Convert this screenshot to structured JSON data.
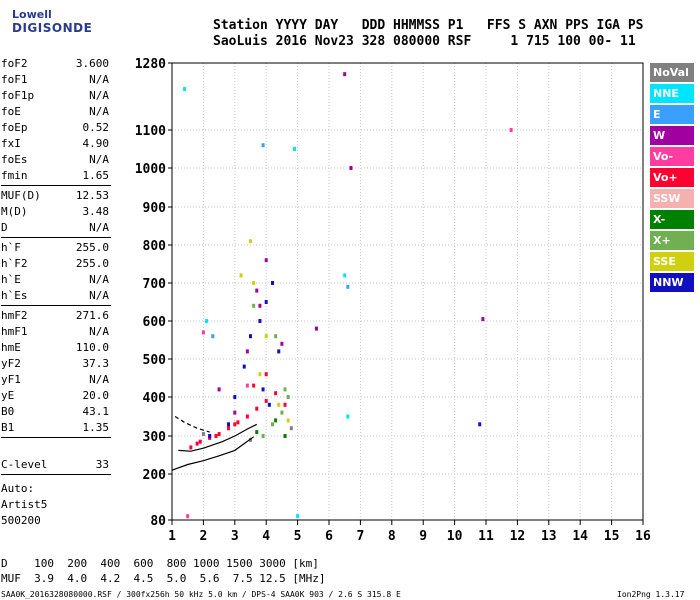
{
  "logo": {
    "top": "Lowell",
    "bottom": "DIGISONDE"
  },
  "header": {
    "line1": "Station YYYY DAY   DDD HHMMSS P1   FFS S AXN PPS IGA PS",
    "line2": "SaoLuis 2016 Nov23 328 080000 RSF     1 715 100 00- 11"
  },
  "parameters": [
    {
      "name": "foF2",
      "value": "3.600"
    },
    {
      "name": "foF1",
      "value": "N/A"
    },
    {
      "name": "foF1p",
      "value": "N/A"
    },
    {
      "name": "foE",
      "value": "N/A"
    },
    {
      "name": "foEp",
      "value": "0.52"
    },
    {
      "name": "fxI",
      "value": "4.90"
    },
    {
      "name": "foEs",
      "value": "N/A"
    },
    {
      "name": "fmin",
      "value": "1.65"
    },
    {
      "name": "MUF(D)",
      "value": "12.53"
    },
    {
      "name": "M(D)",
      "value": "3.48"
    },
    {
      "name": "D",
      "value": "N/A"
    },
    {
      "name": "h`F",
      "value": "255.0"
    },
    {
      "name": "h`F2",
      "value": "255.0"
    },
    {
      "name": "h`E",
      "value": "N/A"
    },
    {
      "name": "h`Es",
      "value": "N/A"
    },
    {
      "name": "hmF2",
      "value": "271.6"
    },
    {
      "name": "hmF1",
      "value": "N/A"
    },
    {
      "name": "hmE",
      "value": "110.0"
    },
    {
      "name": "yF2",
      "value": "37.3"
    },
    {
      "name": "yF1",
      "value": "N/A"
    },
    {
      "name": "yE",
      "value": "20.0"
    },
    {
      "name": "B0",
      "value": "43.1"
    },
    {
      "name": "B1",
      "value": "1.35"
    }
  ],
  "clevel": {
    "name": "C-level",
    "value": "33"
  },
  "auto": {
    "line1": "Auto:",
    "line2": "Artist5",
    "line3": "500200"
  },
  "legend": [
    {
      "label": "NoVal",
      "color": "#808080"
    },
    {
      "label": "NNE",
      "color": "#00e5ff"
    },
    {
      "label": "E",
      "color": "#3aa0ff"
    },
    {
      "label": "W",
      "color": "#a000a0"
    },
    {
      "label": "Vo-",
      "color": "#ff3ca0"
    },
    {
      "label": "Vo+",
      "color": "#ff0030"
    },
    {
      "label": "SSW",
      "color": "#f5b0b0"
    },
    {
      "label": "X-",
      "color": "#008000"
    },
    {
      "label": "X+",
      "color": "#70b050"
    },
    {
      "label": "SSE",
      "color": "#d0d010"
    },
    {
      "label": "NNW",
      "color": "#1010c0"
    }
  ],
  "muf_table": {
    "row1": "D    100  200  400  600  800 1000 1500 3000 [km]",
    "row2": "MUF  3.9  4.0  4.2  4.5  5.0  5.6  7.5 12.5 [MHz]"
  },
  "footer": {
    "left": "SAA0K_2016328080000.RSF / 300fx256h 50 kHz 5.0 km / DPS-4 SAA0K 903 / 2.6 S 315.8 E",
    "right": "Ion2Png 1.3.17"
  },
  "chart_data": {
    "type": "scatter",
    "title": "",
    "xlabel": "",
    "ylabel": "",
    "x_ticks": [
      1,
      2,
      3,
      4,
      5,
      6,
      7,
      8,
      9,
      10,
      11,
      12,
      13,
      14,
      15,
      16
    ],
    "y_ticks": [
      80,
      200,
      300,
      400,
      500,
      600,
      700,
      800,
      900,
      1000,
      1100,
      1280
    ],
    "xlim": [
      1,
      16
    ],
    "ylim": [
      80,
      1280
    ],
    "y_scale": "nonlinear",
    "grid": true,
    "series": [
      {
        "name": "Vo+",
        "color": "#ff0030",
        "points": [
          [
            1.6,
            270
          ],
          [
            1.9,
            285
          ],
          [
            2.2,
            295
          ],
          [
            2.5,
            305
          ],
          [
            2.8,
            320
          ],
          [
            3.1,
            335
          ],
          [
            3.4,
            350
          ],
          [
            3.7,
            370
          ],
          [
            4.0,
            390
          ],
          [
            4.3,
            410
          ],
          [
            4.6,
            380
          ],
          [
            4.0,
            460
          ],
          [
            3.6,
            430
          ],
          [
            3.0,
            330
          ],
          [
            2.4,
            300
          ],
          [
            1.8,
            280
          ]
        ]
      },
      {
        "name": "NNW",
        "color": "#1010c0",
        "points": [
          [
            2.2,
            300
          ],
          [
            2.8,
            330
          ],
          [
            3.3,
            480
          ],
          [
            3.5,
            560
          ],
          [
            3.8,
            600
          ],
          [
            4.0,
            650
          ],
          [
            4.2,
            700
          ],
          [
            4.4,
            520
          ],
          [
            4.1,
            380
          ],
          [
            3.9,
            420
          ],
          [
            10.8,
            330
          ],
          [
            3.0,
            400
          ]
        ]
      },
      {
        "name": "W",
        "color": "#a000a0",
        "points": [
          [
            2.5,
            420
          ],
          [
            3.0,
            360
          ],
          [
            3.4,
            520
          ],
          [
            3.7,
            680
          ],
          [
            4.0,
            760
          ],
          [
            4.5,
            540
          ],
          [
            5.6,
            580
          ],
          [
            6.5,
            1250
          ],
          [
            6.7,
            1000
          ],
          [
            10.9,
            605
          ],
          [
            3.8,
            640
          ]
        ]
      },
      {
        "name": "X+",
        "color": "#70b050",
        "points": [
          [
            3.9,
            300
          ],
          [
            4.2,
            330
          ],
          [
            4.5,
            360
          ],
          [
            4.7,
            400
          ],
          [
            4.3,
            560
          ],
          [
            3.6,
            640
          ],
          [
            4.6,
            420
          ]
        ]
      },
      {
        "name": "SSE",
        "color": "#d0d010",
        "points": [
          [
            3.2,
            720
          ],
          [
            3.6,
            700
          ],
          [
            4.0,
            560
          ],
          [
            4.4,
            380
          ],
          [
            4.7,
            340
          ],
          [
            3.8,
            460
          ],
          [
            3.5,
            810
          ]
        ]
      },
      {
        "name": "NNE",
        "color": "#00e5ff",
        "points": [
          [
            1.4,
            1210
          ],
          [
            5.0,
            90
          ],
          [
            6.5,
            720
          ],
          [
            6.6,
            350
          ],
          [
            4.9,
            1050
          ],
          [
            2.1,
            600
          ]
        ]
      },
      {
        "name": "E",
        "color": "#3aa0ff",
        "points": [
          [
            6.6,
            690
          ],
          [
            2.3,
            560
          ],
          [
            3.9,
            1060
          ]
        ]
      },
      {
        "name": "Vo-",
        "color": "#ff3ca0",
        "points": [
          [
            1.5,
            90
          ],
          [
            2.0,
            570
          ],
          [
            11.8,
            1100
          ],
          [
            3.4,
            430
          ]
        ]
      },
      {
        "name": "X-",
        "color": "#008000",
        "points": [
          [
            4.3,
            340
          ],
          [
            3.7,
            310
          ],
          [
            4.6,
            300
          ]
        ]
      },
      {
        "name": "NoVal",
        "color": "#808080",
        "points": [
          [
            2.0,
            305
          ],
          [
            3.5,
            290
          ],
          [
            4.8,
            320
          ]
        ]
      }
    ],
    "profile_curves": [
      {
        "name": "model-profile",
        "color": "#000000",
        "points": [
          [
            1.0,
            210
          ],
          [
            1.5,
            225
          ],
          [
            2.0,
            235
          ],
          [
            2.5,
            248
          ],
          [
            3.0,
            262
          ],
          [
            3.3,
            280
          ],
          [
            3.6,
            298
          ]
        ]
      },
      {
        "name": "trace",
        "color": "#000000",
        "points": [
          [
            1.2,
            262
          ],
          [
            1.6,
            260
          ],
          [
            2.0,
            268
          ],
          [
            2.6,
            285
          ],
          [
            3.0,
            300
          ],
          [
            3.4,
            318
          ],
          [
            3.7,
            330
          ]
        ]
      },
      {
        "name": "dashed",
        "color": "#000000",
        "dashed": true,
        "points": [
          [
            1.1,
            350
          ],
          [
            1.4,
            335
          ],
          [
            1.8,
            320
          ],
          [
            2.2,
            310
          ]
        ]
      }
    ]
  }
}
